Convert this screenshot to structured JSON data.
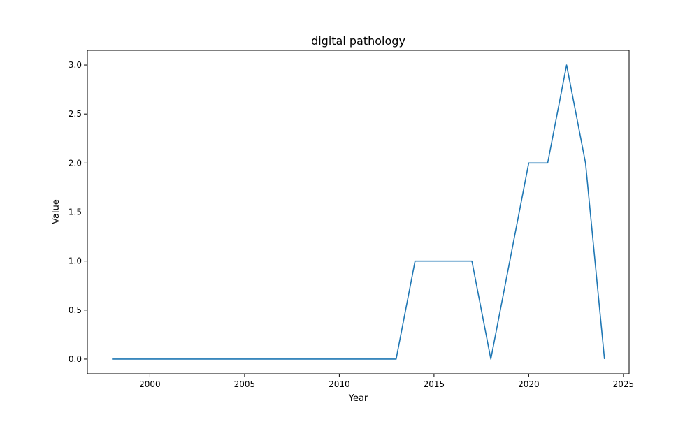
{
  "chart_data": {
    "type": "line",
    "title": "digital pathology",
    "xlabel": "Year",
    "ylabel": "Value",
    "xlim": [
      1996.7,
      2025.3
    ],
    "ylim": [
      -0.15,
      3.15
    ],
    "xticks": [
      2000,
      2005,
      2010,
      2015,
      2020,
      2025
    ],
    "yticks": [
      0.0,
      0.5,
      1.0,
      1.5,
      2.0,
      2.5,
      3.0
    ],
    "xtick_labels": [
      "2000",
      "2005",
      "2010",
      "2015",
      "2020",
      "2025"
    ],
    "ytick_labels": [
      "0.0",
      "0.5",
      "1.0",
      "1.5",
      "2.0",
      "2.5",
      "3.0"
    ],
    "grid": false,
    "series": [
      {
        "color": "#1f77b4",
        "x": [
          1998,
          1999,
          2000,
          2001,
          2002,
          2003,
          2004,
          2005,
          2006,
          2007,
          2008,
          2009,
          2010,
          2011,
          2012,
          2013,
          2014,
          2015,
          2016,
          2017,
          2018,
          2019,
          2020,
          2021,
          2022,
          2023,
          2024
        ],
        "values": [
          0,
          0,
          0,
          0,
          0,
          0,
          0,
          0,
          0,
          0,
          0,
          0,
          0,
          0,
          0,
          0,
          1,
          1,
          1,
          1,
          0,
          1,
          2,
          2,
          3,
          2,
          0
        ]
      }
    ]
  }
}
